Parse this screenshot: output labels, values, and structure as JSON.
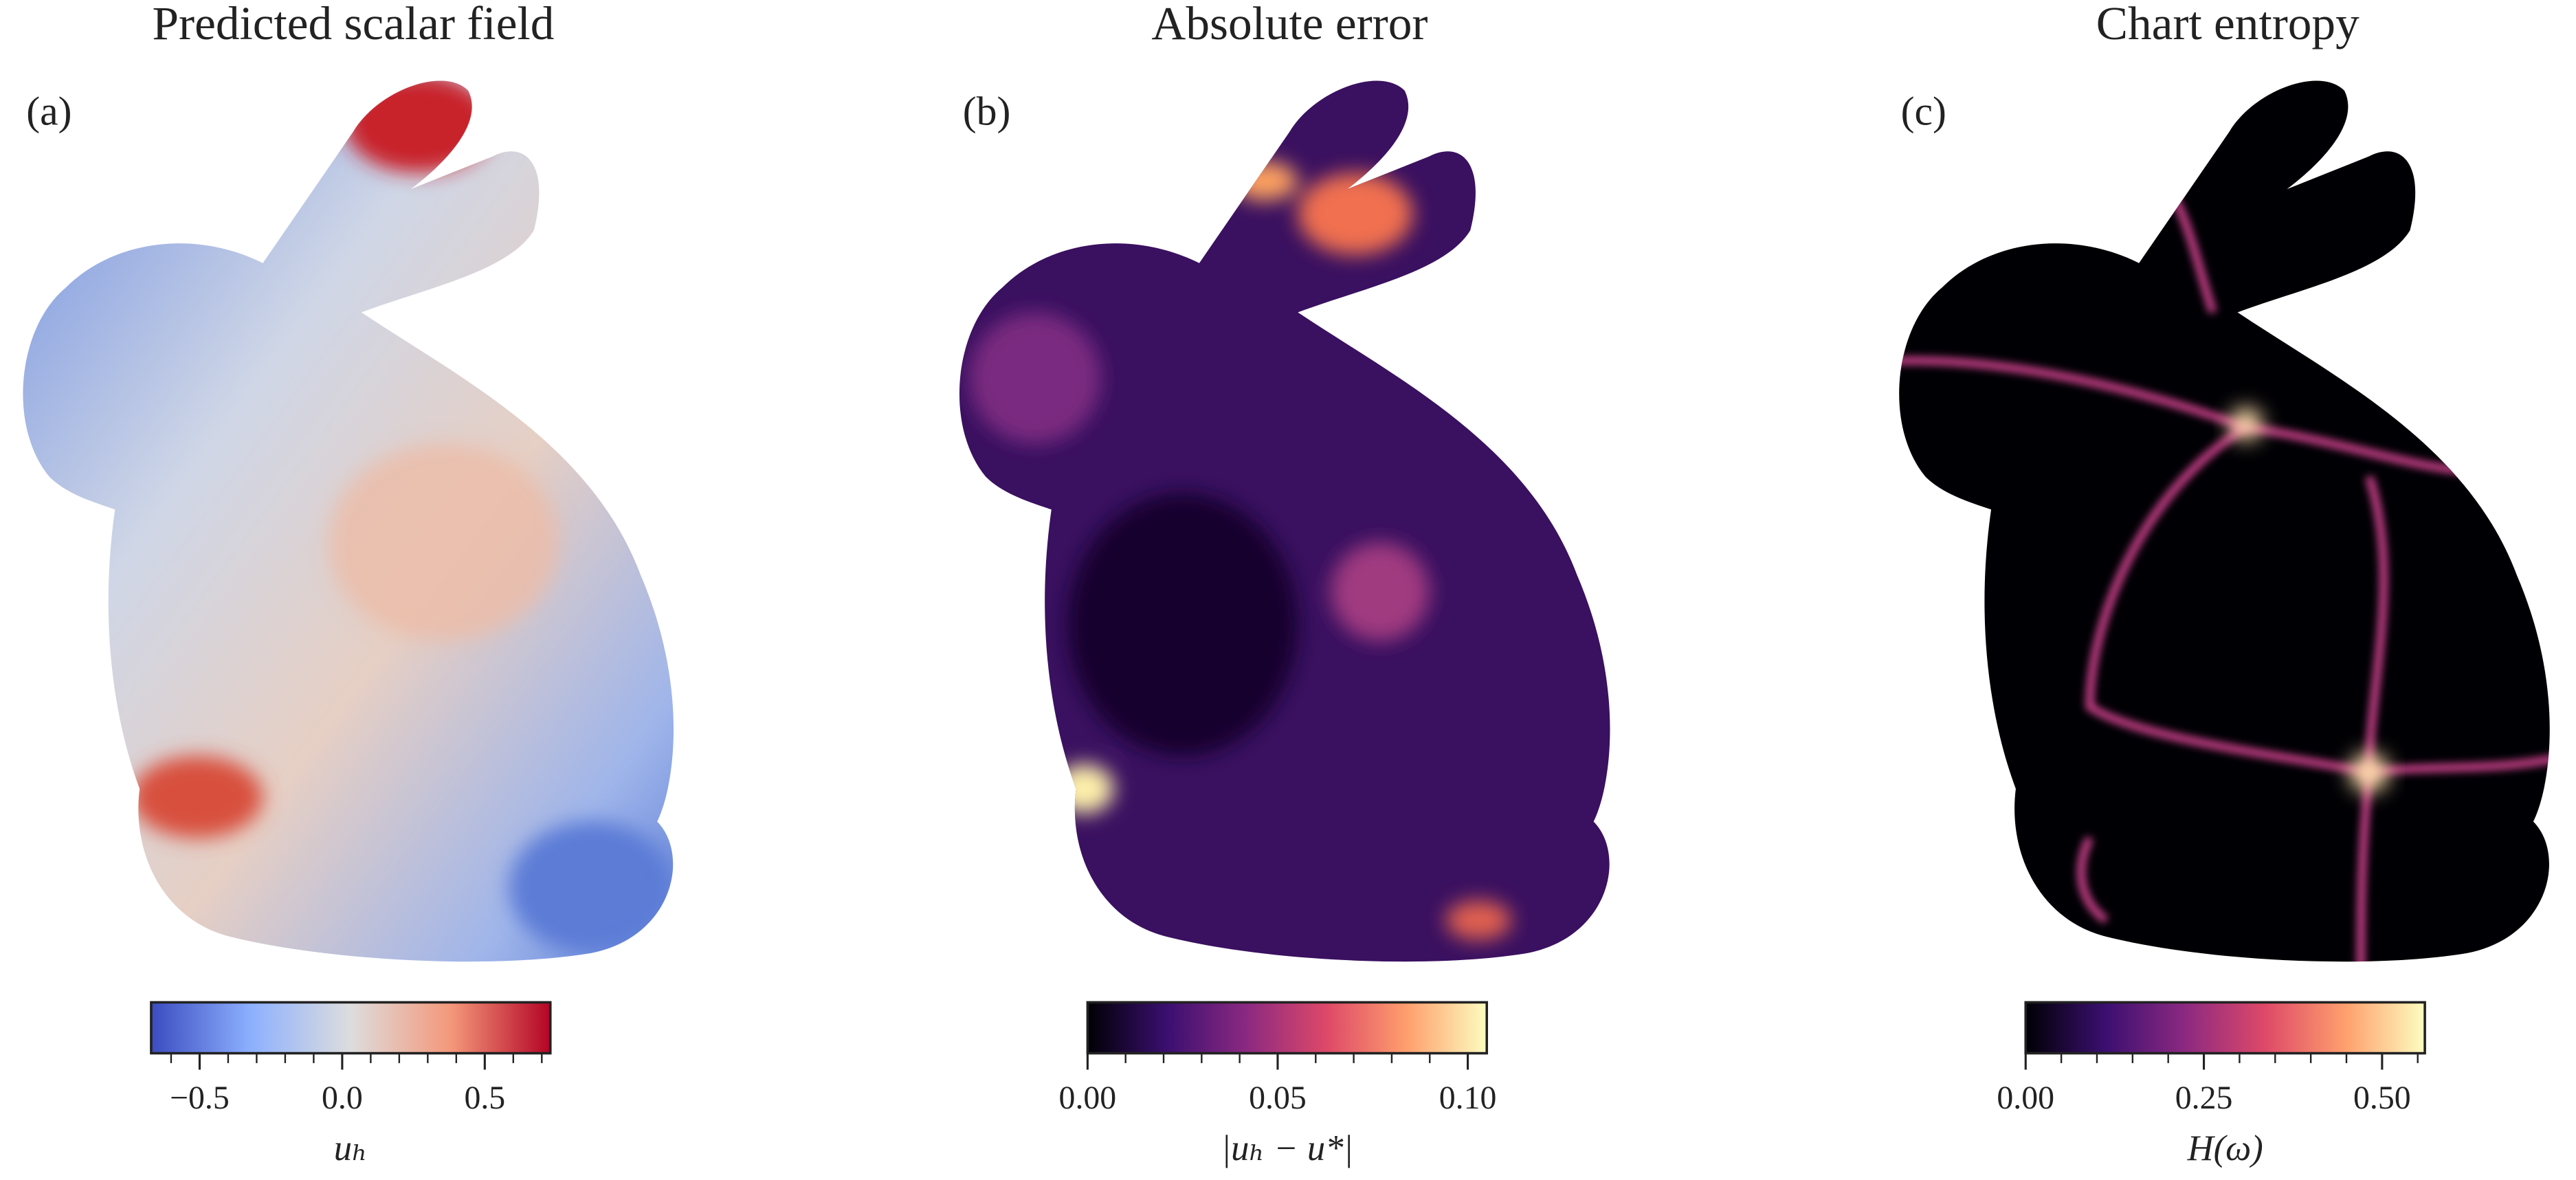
{
  "chart_data": [
    {
      "type": "colorbar",
      "title": "Predicted scalar field",
      "panel_label": "(a)",
      "xlabel": "uₕ",
      "xlim": [
        -0.67,
        0.73
      ],
      "xticks": [
        {
          "value": -0.5,
          "label": "−0.5"
        },
        {
          "value": 0,
          "label": "0.0"
        },
        {
          "value": 0.5,
          "label": "0.5"
        }
      ],
      "minor_xticks": [
        -0.6,
        -0.4,
        -0.3,
        -0.2,
        -0.1,
        0.1,
        0.2,
        0.3,
        0.4,
        0.6,
        0.7
      ],
      "colors": [
        "#3b4cc0",
        "#8db0fe",
        "#dddddd",
        "#f4987a",
        "#b40426"
      ]
    },
    {
      "type": "colorbar",
      "title": "Absolute error",
      "panel_label": "(b)",
      "xlabel": "|uₕ − u*|",
      "xlim": [
        0,
        0.105
      ],
      "xticks": [
        {
          "value": 0,
          "label": "0.00"
        },
        {
          "value": 0.05,
          "label": "0.05"
        },
        {
          "value": 0.1,
          "label": "0.10"
        }
      ],
      "minor_xticks": [
        0.01,
        0.02,
        0.03,
        0.04,
        0.06,
        0.07,
        0.08,
        0.09
      ],
      "colors": [
        "#000004",
        "#3b0f70",
        "#8c2981",
        "#de4968",
        "#fe9f6d",
        "#fcfdbf"
      ]
    },
    {
      "type": "colorbar",
      "title": "Chart entropy",
      "panel_label": "(c)",
      "xlabel": "H(ω)",
      "xlim": [
        0,
        0.56
      ],
      "xticks": [
        {
          "value": 0,
          "label": "0.00"
        },
        {
          "value": 0.25,
          "label": "0.25"
        },
        {
          "value": 0.5,
          "label": "0.50"
        }
      ],
      "minor_xticks": [
        0.05,
        0.1,
        0.15,
        0.2,
        0.3,
        0.35,
        0.4,
        0.45,
        0.55
      ],
      "colors": [
        "#000004",
        "#3b0f70",
        "#8c2981",
        "#de4968",
        "#fe9f6d",
        "#fcfdbf"
      ]
    }
  ]
}
